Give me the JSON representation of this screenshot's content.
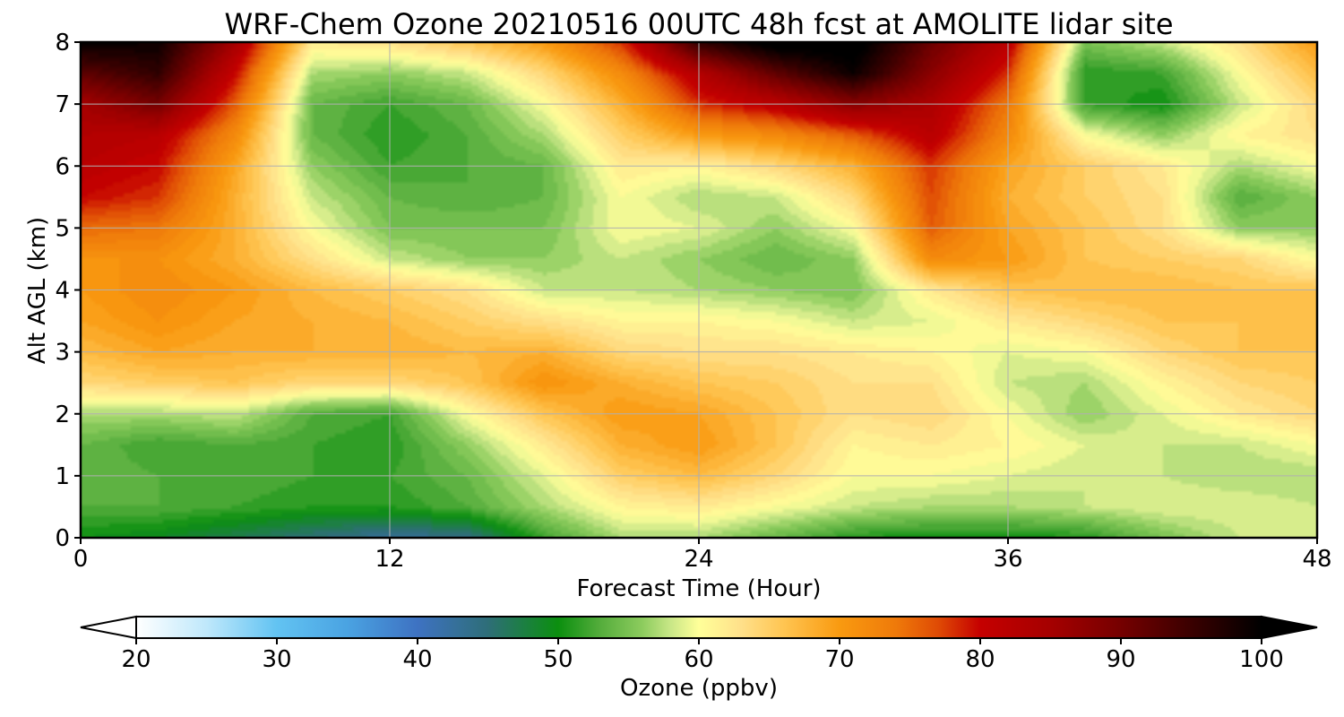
{
  "chart_data": {
    "type": "heatmap",
    "title": "WRF-Chem Ozone  20210516 00UTC 48h fcst at AMOLITE lidar site",
    "xlabel": "Forecast Time (Hour)",
    "ylabel": "Alt AGL (km)",
    "xlim": [
      0,
      48
    ],
    "ylim": [
      0,
      8
    ],
    "xticks": [
      0,
      12,
      24,
      36,
      48
    ],
    "yticks": [
      0,
      1,
      2,
      3,
      4,
      5,
      6,
      7,
      8
    ],
    "grid": true,
    "x": [
      0,
      3,
      6,
      9,
      12,
      15,
      18,
      21,
      24,
      27,
      30,
      33,
      36,
      39,
      42,
      45,
      48
    ],
    "y": [
      0,
      0.5,
      1,
      1.5,
      2,
      2.5,
      3,
      3.5,
      4,
      4.5,
      5,
      5.5,
      6,
      6.5,
      7,
      7.5,
      8
    ],
    "z": [
      [
        50,
        49,
        47,
        45,
        43,
        44,
        52,
        57,
        57,
        54,
        51,
        50,
        50,
        51,
        55,
        58,
        58
      ],
      [
        53,
        53,
        52,
        51,
        51,
        53,
        57,
        61,
        62,
        60,
        58,
        57,
        57,
        58,
        59,
        59,
        58
      ],
      [
        54,
        53,
        53,
        52,
        52,
        54,
        59,
        65,
        67,
        64,
        60,
        60,
        59,
        58,
        58,
        57,
        57
      ],
      [
        54,
        52,
        53,
        52,
        51,
        56,
        62,
        68,
        70,
        66,
        61,
        62,
        61,
        59,
        58,
        58,
        60
      ],
      [
        57,
        57,
        58,
        53,
        52,
        60,
        66,
        70,
        69,
        66,
        63,
        64,
        60,
        56,
        59,
        62,
        64
      ],
      [
        64,
        65,
        66,
        64,
        64,
        66,
        71,
        68,
        66,
        65,
        63,
        63,
        58,
        57,
        61,
        64,
        65
      ],
      [
        67,
        69,
        68,
        68,
        68,
        67,
        68,
        64,
        63,
        63,
        62,
        61,
        59,
        60,
        64,
        66,
        66
      ],
      [
        69,
        71,
        69,
        68,
        67,
        65,
        63,
        61,
        61,
        60,
        58,
        59,
        62,
        64,
        66,
        66,
        66
      ],
      [
        70,
        72,
        70,
        67,
        65,
        63,
        58,
        58,
        57,
        56,
        55,
        62,
        66,
        67,
        67,
        66,
        66
      ],
      [
        71,
        71,
        68,
        63,
        58,
        56,
        56,
        58,
        56,
        54,
        56,
        72,
        70,
        66,
        65,
        64,
        60
      ],
      [
        75,
        74,
        68,
        60,
        55,
        55,
        55,
        60,
        59,
        56,
        60,
        76,
        69,
        66,
        63,
        56,
        56
      ],
      [
        80,
        78,
        68,
        58,
        54,
        53,
        54,
        60,
        57,
        58,
        64,
        77,
        68,
        65,
        63,
        53,
        56
      ],
      [
        82,
        80,
        69,
        56,
        52,
        53,
        54,
        62,
        61,
        64,
        68,
        78,
        69,
        65,
        62,
        57,
        60
      ],
      [
        83,
        82,
        72,
        54,
        51,
        53,
        57,
        65,
        70,
        72,
        76,
        82,
        72,
        60,
        56,
        61,
        63
      ],
      [
        85,
        90,
        76,
        54,
        52,
        54,
        60,
        68,
        78,
        82,
        88,
        84,
        74,
        52,
        50,
        58,
        64
      ],
      [
        92,
        96,
        80,
        57,
        56,
        58,
        64,
        72,
        83,
        92,
        99,
        88,
        78,
        51,
        52,
        60,
        67
      ],
      [
        100,
        99,
        85,
        62,
        63,
        66,
        70,
        78,
        96,
        102,
        102,
        91,
        82,
        55,
        58,
        63,
        70
      ]
    ],
    "colorbar": {
      "label": "Ozone  (ppbv)",
      "min": 20,
      "max": 100,
      "ticks": [
        "20",
        "30",
        "40",
        "50",
        "60",
        "70",
        "80",
        "90",
        "100"
      ],
      "extend": "both",
      "stops": [
        [
          20,
          "#ffffff"
        ],
        [
          25,
          "#bfe8fb"
        ],
        [
          30,
          "#62c3f2"
        ],
        [
          35,
          "#4aa3e2"
        ],
        [
          40,
          "#3e72c2"
        ],
        [
          45,
          "#2e6e78"
        ],
        [
          50,
          "#0b8f0f"
        ],
        [
          53,
          "#55ad3c"
        ],
        [
          56,
          "#8dcc5e"
        ],
        [
          58,
          "#c9e787"
        ],
        [
          60,
          "#ffff99"
        ],
        [
          63,
          "#ffe08a"
        ],
        [
          66,
          "#ffc552"
        ],
        [
          70,
          "#f99a10"
        ],
        [
          74,
          "#ef7a0a"
        ],
        [
          77,
          "#df4b05"
        ],
        [
          80,
          "#c50000"
        ],
        [
          85,
          "#a50000"
        ],
        [
          90,
          "#750000"
        ],
        [
          95,
          "#3a0000"
        ],
        [
          100,
          "#000000"
        ]
      ]
    }
  }
}
